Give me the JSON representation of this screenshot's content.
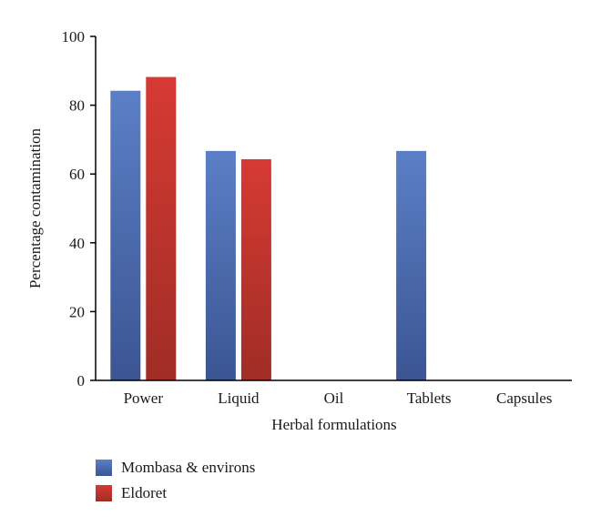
{
  "chart_data": {
    "type": "bar",
    "categories": [
      "Power",
      "Liquid",
      "Oil",
      "Tablets",
      "Capsules"
    ],
    "series": [
      {
        "name": "Mombasa & environs",
        "values": [
          84.2,
          66.7,
          0,
          66.7,
          0
        ],
        "color": "#4a6bb2"
      },
      {
        "name": "Eldoret",
        "values": [
          88.2,
          64.3,
          0,
          0,
          0
        ],
        "color": "#c2302c"
      }
    ],
    "xlabel": "Herbal formulations",
    "ylabel": "Percentage contamination",
    "ylim": [
      0,
      100
    ],
    "yticks": [
      0,
      20,
      40,
      60,
      80,
      100
    ],
    "legend_position": "bottom-left",
    "grid": false
  }
}
